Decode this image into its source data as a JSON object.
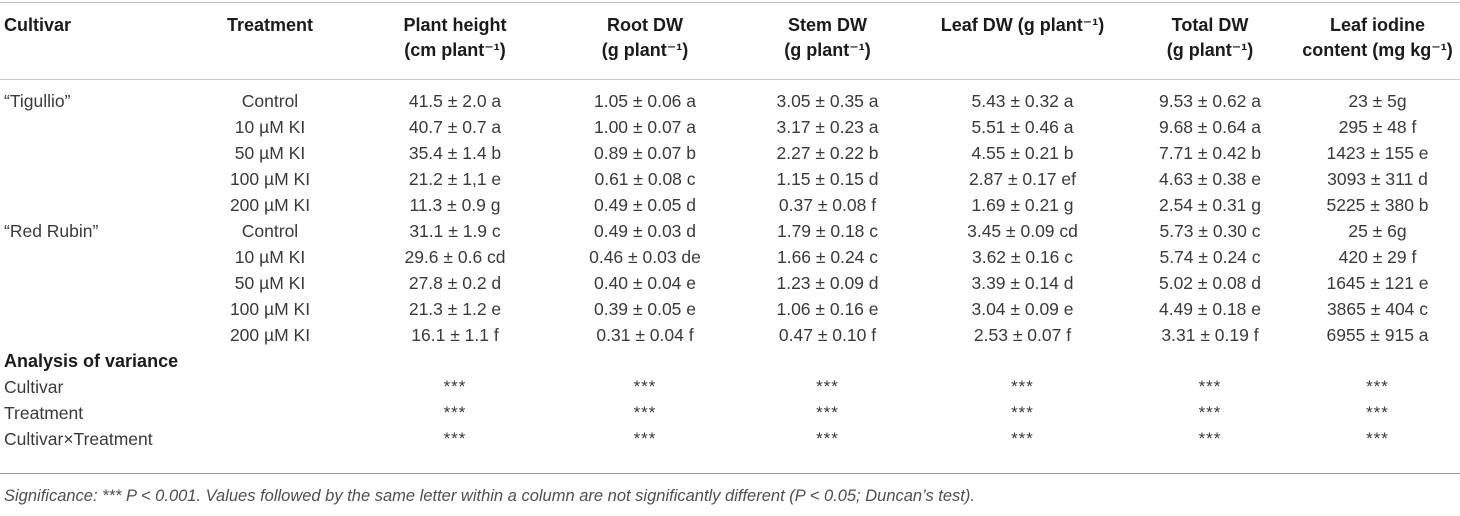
{
  "table": {
    "columns": [
      {
        "label": "Cultivar",
        "sub": ""
      },
      {
        "label": "Treatment",
        "sub": ""
      },
      {
        "label": "Plant height",
        "sub": "(cm plant⁻¹)"
      },
      {
        "label": "Root DW",
        "sub": "(g plant⁻¹)"
      },
      {
        "label": "Stem DW",
        "sub": "(g plant⁻¹)"
      },
      {
        "label": "Leaf DW (g plant⁻¹)",
        "sub": ""
      },
      {
        "label": "Total DW",
        "sub": "(g plant⁻¹)"
      },
      {
        "label": "Leaf iodine",
        "sub": "content (mg kg⁻¹)"
      }
    ],
    "rows": [
      [
        "“Tigullio”",
        "Control",
        "41.5 ± 2.0 a",
        "1.05 ± 0.06 a",
        "3.05 ± 0.35 a",
        "5.43 ± 0.32 a",
        "9.53 ± 0.62 a",
        "23 ± 5g"
      ],
      [
        "",
        "10 µM KI",
        "40.7 ± 0.7 a",
        "1.00 ± 0.07 a",
        "3.17 ± 0.23 a",
        "5.51 ± 0.46 a",
        "9.68 ± 0.64 a",
        "295 ± 48 f"
      ],
      [
        "",
        "50 µM KI",
        "35.4 ± 1.4 b",
        "0.89 ± 0.07 b",
        "2.27 ± 0.22 b",
        "4.55 ± 0.21 b",
        "7.71 ± 0.42 b",
        "1423 ± 155 e"
      ],
      [
        "",
        "100 µM KI",
        "21.2 ± 1,1 e",
        "0.61 ± 0.08 c",
        "1.15 ± 0.15 d",
        "2.87 ± 0.17 ef",
        "4.63 ± 0.38 e",
        "3093 ± 311 d"
      ],
      [
        "",
        "200 µM KI",
        "11.3 ± 0.9 g",
        "0.49 ± 0.05 d",
        "0.37 ± 0.08 f",
        "1.69 ± 0.21 g",
        "2.54 ± 0.31 g",
        "5225 ± 380 b"
      ],
      [
        "“Red Rubin”",
        "Control",
        "31.1 ± 1.9 c",
        "0.49 ± 0.03 d",
        "1.79 ± 0.18 c",
        "3.45 ± 0.09 cd",
        "5.73 ± 0.30 c",
        "25 ± 6g"
      ],
      [
        "",
        "10 µM KI",
        "29.6 ± 0.6 cd",
        "0.46 ± 0.03 de",
        "1.66 ± 0.24 c",
        "3.62 ± 0.16 c",
        "5.74 ± 0.24 c",
        "420 ± 29 f"
      ],
      [
        "",
        "50 µM KI",
        "27.8 ± 0.2 d",
        "0.40 ± 0.04 e",
        "1.23 ± 0.09 d",
        "3.39 ± 0.14 d",
        "5.02 ± 0.08 d",
        "1645 ± 121 e"
      ],
      [
        "",
        "100 µM KI",
        "21.3 ± 1.2 e",
        "0.39 ± 0.05 e",
        "1.06 ± 0.16 e",
        "3.04 ± 0.09 e",
        "4.49 ± 0.18 e",
        "3865 ± 404 c"
      ],
      [
        "",
        "200 µM KI",
        "16.1 ± 1.1 f",
        "0.31 ± 0.04 f",
        "0.47 ± 0.10 f",
        "2.53 ± 0.07 f",
        "3.31 ± 0.19 f",
        "6955 ± 915 a"
      ]
    ],
    "anova": {
      "section_label": "Analysis of variance",
      "rows": [
        {
          "label": "Cultivar",
          "values": [
            "***",
            "***",
            "***",
            "***",
            "***",
            "***"
          ]
        },
        {
          "label": "Treatment",
          "values": [
            "***",
            "***",
            "***",
            "***",
            "***",
            "***"
          ]
        },
        {
          "label": "Cultivar×Treatment",
          "values": [
            "***",
            "***",
            "***",
            "***",
            "***",
            "***"
          ]
        }
      ]
    }
  },
  "footnote": "Significance: *** P < 0.001. Values followed by the same letter within a column are not significantly different (P < 0.05; Duncan’s test)."
}
